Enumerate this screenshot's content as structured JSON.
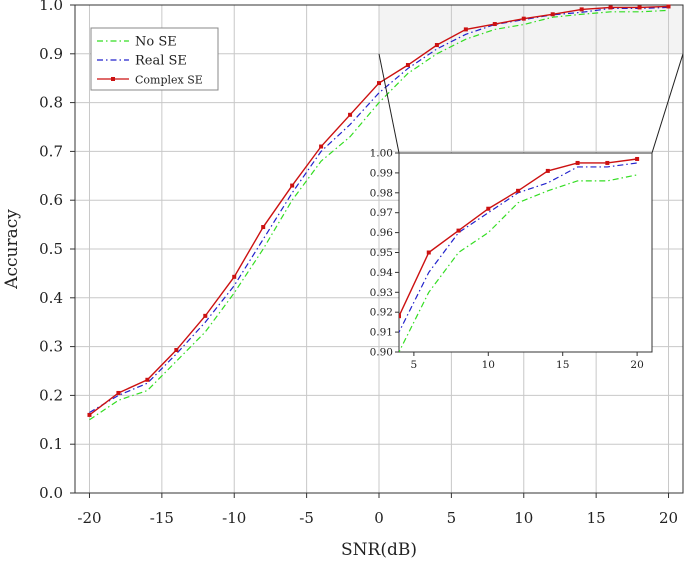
{
  "chart_data": {
    "type": "line",
    "xlabel": "SNR(dB)",
    "ylabel": "Accuracy",
    "xlim": [
      -21,
      21
    ],
    "ylim": [
      0,
      1
    ],
    "xticks": [
      "-20",
      "-15",
      "-10",
      "-5",
      "0",
      "5",
      "10",
      "15",
      "20"
    ],
    "yticks": [
      "0.0",
      "0.1",
      "0.2",
      "0.3",
      "0.4",
      "0.5",
      "0.6",
      "0.7",
      "0.8",
      "0.9",
      "1.0"
    ],
    "grid": true,
    "legend": "top-left",
    "x": [
      -20,
      -18,
      -16,
      -14,
      -12,
      -10,
      -8,
      -6,
      -4,
      -2,
      0,
      2,
      4,
      6,
      8,
      10,
      12,
      14,
      16,
      18,
      20
    ],
    "series": [
      {
        "name": "No SE",
        "color": "#33dd22",
        "style": "dash-dot",
        "values": [
          0.15,
          0.19,
          0.21,
          0.27,
          0.33,
          0.41,
          0.5,
          0.6,
          0.68,
          0.73,
          0.8,
          0.86,
          0.9,
          0.93,
          0.95,
          0.96,
          0.975,
          0.981,
          0.986,
          0.986,
          0.989
        ]
      },
      {
        "name": "Real SE",
        "color": "#2222cc",
        "style": "dash-dot",
        "values": [
          0.165,
          0.2,
          0.225,
          0.285,
          0.35,
          0.425,
          0.52,
          0.615,
          0.7,
          0.755,
          0.82,
          0.87,
          0.91,
          0.94,
          0.96,
          0.97,
          0.98,
          0.985,
          0.993,
          0.993,
          0.995
        ]
      },
      {
        "name": "Complex SE",
        "color": "#cc1111",
        "style": "solid-square",
        "values": [
          0.16,
          0.205,
          0.232,
          0.293,
          0.363,
          0.443,
          0.545,
          0.63,
          0.71,
          0.775,
          0.84,
          0.877,
          0.918,
          0.95,
          0.961,
          0.972,
          0.981,
          0.991,
          0.995,
          0.995,
          0.997
        ]
      }
    ],
    "inset": {
      "xlim": [
        4,
        21
      ],
      "ylim": [
        0.9,
        1.0
      ],
      "xticks": [
        "5",
        "10",
        "15",
        "20"
      ],
      "yticks": [
        "0.90",
        "0.91",
        "0.92",
        "0.93",
        "0.94",
        "0.95",
        "0.96",
        "0.97",
        "0.98",
        "0.99",
        "1.00"
      ],
      "zoom_region": {
        "x": [
          0,
          21
        ],
        "y": [
          0.9,
          1.0
        ]
      }
    }
  }
}
